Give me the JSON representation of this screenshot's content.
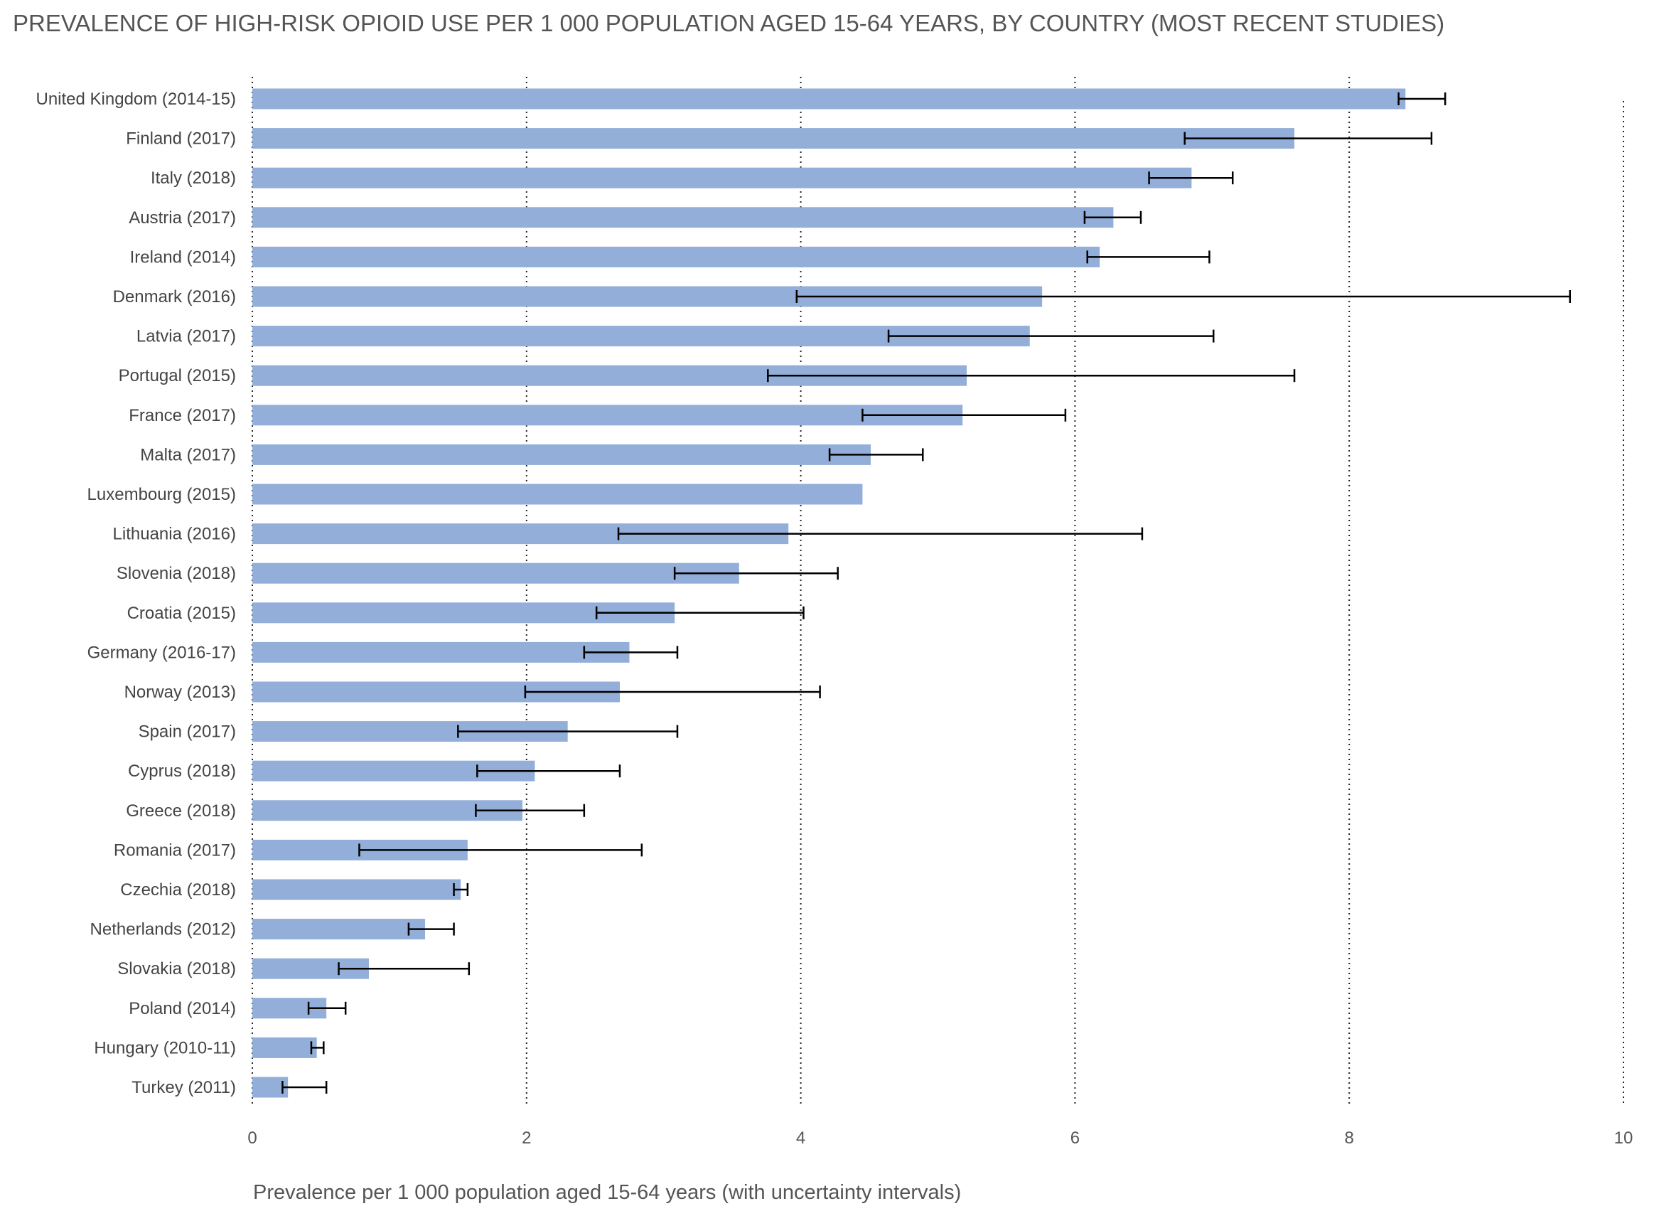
{
  "chart_data": {
    "type": "bar",
    "orientation": "horizontal",
    "title": "PREVALENCE OF HIGH-RISK OPIOID USE PER 1 000 POPULATION AGED 15-64 YEARS, BY COUNTRY (MOST RECENT STUDIES)",
    "xlabel": "Prevalence per 1 000 population aged 15-64 years (with uncertainty intervals)",
    "ylabel": "",
    "xlim": [
      0,
      10
    ],
    "xticks": [
      "0",
      "2",
      "4",
      "6",
      "8",
      "10"
    ],
    "grid": "vertical dotted",
    "bar_color": "#92aed9",
    "error_bar_color": "#000000",
    "categories": [
      "United Kingdom (2014-15)",
      "Finland (2017)",
      "Italy (2018)",
      "Austria (2017)",
      "Ireland (2014)",
      "Denmark (2016)",
      "Latvia (2017)",
      "Portugal (2015)",
      "France (2017)",
      "Malta (2017)",
      "Luxembourg (2015)",
      "Lithuania (2016)",
      "Slovenia (2018)",
      "Croatia (2015)",
      "Germany (2016-17)",
      "Norway (2013)",
      "Spain (2017)",
      "Cyprus (2018)",
      "Greece (2018)",
      "Romania (2017)",
      "Czechia (2018)",
      "Netherlands (2012)",
      "Slovakia (2018)",
      "Poland (2014)",
      "Hungary (2010-11)",
      "Turkey (2011)"
    ],
    "values": [
      8.41,
      7.6,
      6.85,
      6.28,
      6.18,
      5.76,
      5.67,
      5.21,
      5.18,
      4.51,
      4.45,
      3.91,
      3.55,
      3.08,
      2.75,
      2.68,
      2.3,
      2.06,
      1.97,
      1.57,
      1.52,
      1.26,
      0.85,
      0.54,
      0.47,
      0.26
    ],
    "lower": [
      8.36,
      6.8,
      6.54,
      6.07,
      6.09,
      3.97,
      4.64,
      3.76,
      4.45,
      4.21,
      null,
      2.67,
      3.08,
      2.51,
      2.42,
      1.99,
      1.5,
      1.64,
      1.63,
      0.78,
      1.47,
      1.14,
      0.63,
      0.41,
      0.43,
      0.22
    ],
    "upper": [
      8.7,
      8.6,
      7.15,
      6.48,
      6.98,
      9.61,
      7.01,
      7.6,
      5.93,
      4.89,
      null,
      6.49,
      4.27,
      4.02,
      3.1,
      4.14,
      3.1,
      2.68,
      2.42,
      2.84,
      1.57,
      1.47,
      1.58,
      0.68,
      0.52,
      0.54
    ]
  }
}
